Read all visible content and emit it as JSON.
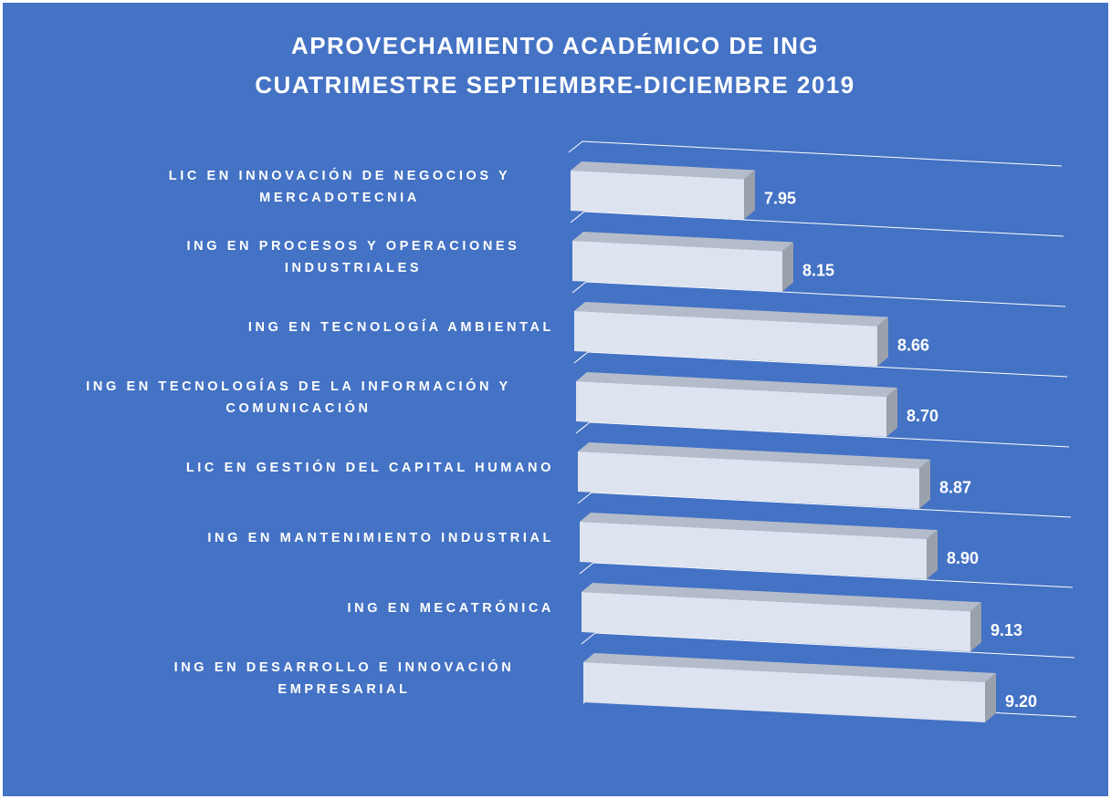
{
  "chart_data": {
    "type": "bar3d",
    "title": "APROVECHAMIENTO ACADÉMICO DE ING",
    "subtitle": "CUATRIMESTRE SEPTIEMBRE-DICIEMBRE 2019",
    "categories": [
      "LIC EN INNOVACIÓN DE NEGOCIOS Y MERCADOTECNIA",
      "ING EN PROCESOS Y OPERACIONES INDUSTRIALES",
      "ING EN TECNOLOGÍA AMBIENTAL",
      "ING EN TECNOLOGÍAS DE LA INFORMACIÓN Y COMUNICACIÓN",
      "LIC EN GESTIÓN DEL CAPITAL HUMANO",
      "ING EN MANTENIMIENTO INDUSTRIAL",
      "ING EN MECATRÓNICA",
      "ING EN DESARROLLO E INNOVACIÓN EMPRESARIAL"
    ],
    "values": [
      7.95,
      8.15,
      8.66,
      8.7,
      8.87,
      8.9,
      9.13,
      9.2
    ],
    "value_labels": [
      "7.95",
      "8.15",
      "8.66",
      "8.70",
      "8.87",
      "8.90",
      "9.13",
      "9.20"
    ],
    "xlim": [
      7,
      9.5
    ],
    "color": "#dde3ef",
    "grid": true
  }
}
